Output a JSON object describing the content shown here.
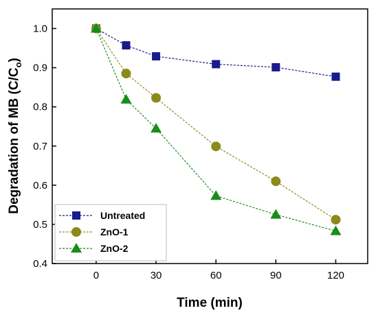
{
  "chart_data": {
    "type": "line",
    "x": [
      0,
      15,
      30,
      60,
      90,
      120
    ],
    "xlabel": "Time (min)",
    "ylabel_main": "Degradation of MB (C/C",
    "ylabel_sub": "o",
    "ylabel_close": ")",
    "xlim": [
      -22,
      136
    ],
    "ylim": [
      0.4,
      1.05
    ],
    "xticks": [
      0,
      30,
      60,
      90,
      120
    ],
    "yticks": [
      0.4,
      0.5,
      0.6,
      0.7,
      0.8,
      0.9,
      1.0
    ],
    "xtick_labels": [
      "0",
      "30",
      "60",
      "90",
      "120"
    ],
    "ytick_labels": [
      "0.4",
      "0.5",
      "0.6",
      "0.7",
      "0.8",
      "0.9",
      "1.0"
    ],
    "legend_position": "bottom-left",
    "grid": false,
    "series": [
      {
        "name": "Untreated",
        "marker": "square",
        "color": "#1a1a8c",
        "values": [
          1.0,
          0.957,
          0.929,
          0.909,
          0.901,
          0.877
        ]
      },
      {
        "name": "ZnO-1",
        "marker": "circle",
        "color": "#8c8a1a",
        "values": [
          1.0,
          0.885,
          0.823,
          0.699,
          0.61,
          0.512
        ]
      },
      {
        "name": "ZnO-2",
        "marker": "triangle",
        "color": "#1a8c1a",
        "values": [
          1.0,
          0.819,
          0.745,
          0.573,
          0.525,
          0.483
        ]
      }
    ]
  }
}
